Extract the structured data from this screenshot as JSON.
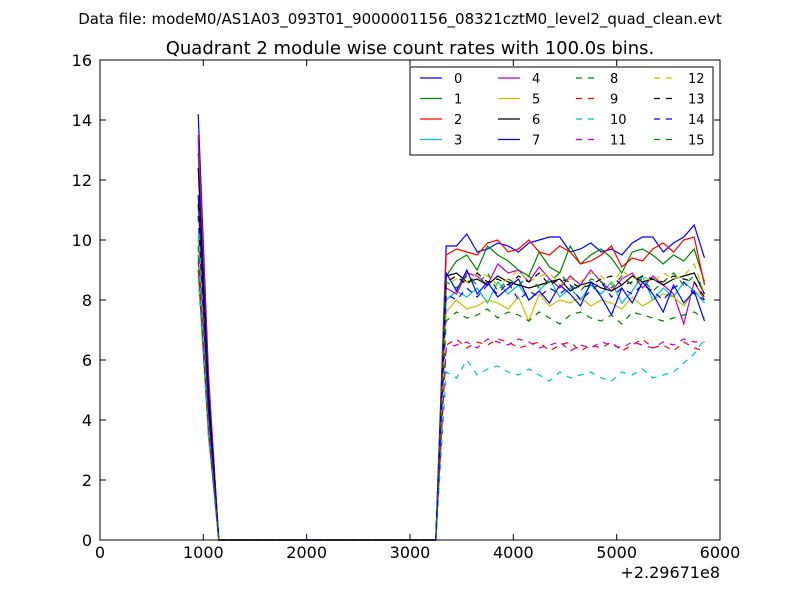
{
  "figure": {
    "suptitle": "Data file: modeM0/AS1A03_093T01_9000001156_08321cztM0_level2_quad_clean.evt",
    "title": "Quadrant 2 module wise count rates with 100.0s bins."
  },
  "chart_data": {
    "type": "line",
    "title": "Quadrant 2 module wise count rates with 100.0s bins.",
    "xlabel": "",
    "ylabel": "",
    "x_offset_label": "+2.29671e8",
    "xlim": [
      0,
      6000
    ],
    "ylim": [
      0,
      16
    ],
    "xticks": [
      0,
      1000,
      2000,
      3000,
      4000,
      5000,
      6000
    ],
    "yticks": [
      0,
      2,
      4,
      6,
      8,
      10,
      12,
      14,
      16
    ],
    "grid": false,
    "legend": {
      "placement": "top-right",
      "columns": 4
    },
    "x": [
      950,
      1050,
      1150,
      1250,
      1350,
      1450,
      1550,
      1650,
      1750,
      1850,
      1950,
      2050,
      2150,
      2250,
      2350,
      2450,
      2550,
      2650,
      2750,
      2850,
      2950,
      3050,
      3150,
      3250,
      3350,
      3450,
      3550,
      3650,
      3750,
      3850,
      3950,
      4050,
      4150,
      4250,
      4350,
      4450,
      4550,
      4650,
      4750,
      4850,
      4950,
      5050,
      5150,
      5250,
      5350,
      5450,
      5550,
      5650,
      5750,
      5850
    ],
    "series": [
      {
        "name": "0",
        "color": "#0000ff",
        "dash": "solid",
        "values": [
          14.2,
          5.5,
          0,
          0,
          0,
          0,
          0,
          0,
          0,
          0,
          0,
          0,
          0,
          0,
          0,
          0,
          0,
          0,
          0,
          0,
          0,
          0,
          0,
          0,
          9.8,
          9.8,
          10.2,
          9.6,
          9.7,
          9.9,
          9.8,
          9.6,
          9.9,
          10.0,
          10.1,
          10.1,
          9.6,
          9.7,
          9.9,
          9.6,
          9.7,
          9.5,
          9.9,
          10.1,
          10.1,
          9.6,
          9.9,
          10.1,
          10.5,
          9.4
        ]
      },
      {
        "name": "1",
        "color": "#008000",
        "dash": "solid",
        "values": [
          12.9,
          5.0,
          0,
          0,
          0,
          0,
          0,
          0,
          0,
          0,
          0,
          0,
          0,
          0,
          0,
          0,
          0,
          0,
          0,
          0,
          0,
          0,
          0,
          0,
          8.8,
          9.3,
          9.5,
          9.0,
          9.8,
          9.5,
          9.3,
          9.0,
          8.8,
          9.6,
          9.1,
          8.9,
          9.8,
          9.2,
          9.5,
          9.7,
          9.4,
          8.9,
          9.6,
          9.7,
          9.5,
          9.2,
          9.5,
          9.3,
          9.7,
          8.6
        ]
      },
      {
        "name": "2",
        "color": "#ff0000",
        "dash": "solid",
        "values": [
          13.5,
          5.3,
          0,
          0,
          0,
          0,
          0,
          0,
          0,
          0,
          0,
          0,
          0,
          0,
          0,
          0,
          0,
          0,
          0,
          0,
          0,
          0,
          0,
          0,
          9.5,
          9.7,
          9.6,
          9.5,
          9.9,
          10.0,
          9.6,
          9.7,
          10.0,
          9.6,
          9.5,
          9.8,
          9.6,
          9.2,
          9.3,
          9.5,
          9.8,
          9.1,
          9.4,
          9.3,
          9.7,
          9.9,
          9.6,
          10.0,
          10.1,
          8.5
        ]
      },
      {
        "name": "3",
        "color": "#00bfbf",
        "dash": "solid",
        "values": [
          10.2,
          4.0,
          0,
          0,
          0,
          0,
          0,
          0,
          0,
          0,
          0,
          0,
          0,
          0,
          0,
          0,
          0,
          0,
          0,
          0,
          0,
          0,
          0,
          0,
          8.0,
          8.3,
          8.1,
          8.4,
          7.9,
          8.6,
          8.2,
          8.5,
          8.0,
          8.3,
          8.7,
          8.1,
          8.4,
          8.0,
          8.5,
          8.2,
          8.6,
          7.9,
          8.3,
          8.8,
          8.0,
          8.4,
          8.1,
          8.6,
          8.3,
          7.9
        ]
      },
      {
        "name": "4",
        "color": "#bf00bf",
        "dash": "solid",
        "values": [
          13.3,
          5.2,
          0,
          0,
          0,
          0,
          0,
          0,
          0,
          0,
          0,
          0,
          0,
          0,
          0,
          0,
          0,
          0,
          0,
          0,
          0,
          0,
          0,
          0,
          8.4,
          8.2,
          8.9,
          8.8,
          8.5,
          9.2,
          8.9,
          9.0,
          8.6,
          9.1,
          8.7,
          8.4,
          8.8,
          8.5,
          9.0,
          8.6,
          8.3,
          8.7,
          8.9,
          8.4,
          8.8,
          8.5,
          8.2,
          7.2,
          8.6,
          8.0
        ]
      },
      {
        "name": "5",
        "color": "#bfbf00",
        "dash": "solid",
        "values": [
          11.0,
          4.3,
          0,
          0,
          0,
          0,
          0,
          0,
          0,
          0,
          0,
          0,
          0,
          0,
          0,
          0,
          0,
          0,
          0,
          0,
          0,
          0,
          0,
          0,
          7.6,
          8.0,
          7.7,
          7.8,
          8.0,
          7.9,
          7.7,
          8.1,
          7.3,
          8.2,
          7.8,
          8.0,
          7.9,
          8.1,
          7.8,
          8.0,
          7.9,
          7.7,
          8.1,
          7.8,
          8.0,
          8.2,
          8.1,
          7.8,
          8.3,
          8.1
        ]
      },
      {
        "name": "6",
        "color": "#000000",
        "dash": "solid",
        "values": [
          12.4,
          4.9,
          0,
          0,
          0,
          0,
          0,
          0,
          0,
          0,
          0,
          0,
          0,
          0,
          0,
          0,
          0,
          0,
          0,
          0,
          0,
          0,
          0,
          0,
          8.8,
          8.9,
          8.6,
          8.7,
          8.5,
          8.8,
          8.6,
          8.5,
          8.4,
          8.5,
          8.6,
          8.7,
          8.3,
          8.5,
          8.6,
          8.4,
          8.3,
          8.5,
          8.8,
          8.6,
          8.7,
          8.5,
          8.7,
          8.8,
          8.9,
          8.2
        ]
      },
      {
        "name": "7",
        "color": "#0000ff",
        "dash": "solid",
        "values": [
          11.5,
          4.4,
          0,
          0,
          0,
          0,
          0,
          0,
          0,
          0,
          0,
          0,
          0,
          0,
          0,
          0,
          0,
          0,
          0,
          0,
          0,
          0,
          0,
          0,
          8.9,
          8.3,
          9.0,
          8.2,
          8.6,
          8.1,
          8.4,
          8.7,
          8.0,
          8.3,
          7.9,
          8.5,
          8.2,
          7.8,
          8.6,
          8.1,
          7.5,
          8.4,
          7.9,
          8.6,
          8.2,
          7.6,
          8.5,
          7.9,
          8.3,
          7.3
        ]
      },
      {
        "name": "8",
        "color": "#008000",
        "dash": "dashed",
        "values": [
          9.5,
          3.8,
          0,
          0,
          0,
          0,
          0,
          0,
          0,
          0,
          0,
          0,
          0,
          0,
          0,
          0,
          0,
          0,
          0,
          0,
          0,
          0,
          0,
          0,
          7.3,
          7.6,
          7.4,
          7.5,
          7.7,
          7.4,
          7.6,
          7.5,
          7.3,
          7.6,
          7.4,
          7.2,
          7.5,
          7.6,
          7.4,
          7.3,
          7.5,
          7.2,
          7.6,
          7.5,
          7.4,
          7.3,
          7.4,
          7.5,
          7.6,
          7.4
        ]
      },
      {
        "name": "9",
        "color": "#ff0000",
        "dash": "dashed",
        "values": [
          9.0,
          3.5,
          0,
          0,
          0,
          0,
          0,
          0,
          0,
          0,
          0,
          0,
          0,
          0,
          0,
          0,
          0,
          0,
          0,
          0,
          0,
          0,
          0,
          0,
          6.5,
          6.7,
          6.4,
          6.6,
          6.5,
          6.7,
          6.6,
          6.4,
          6.5,
          6.6,
          6.3,
          6.5,
          6.6,
          6.3,
          6.5,
          6.4,
          6.6,
          6.3,
          6.5,
          6.7,
          6.4,
          6.5,
          6.3,
          6.6,
          6.4,
          6.3
        ]
      },
      {
        "name": "10",
        "color": "#00bfbf",
        "dash": "dashed",
        "values": [
          8.8,
          3.4,
          0,
          0,
          0,
          0,
          0,
          0,
          0,
          0,
          0,
          0,
          0,
          0,
          0,
          0,
          0,
          0,
          0,
          0,
          0,
          0,
          0,
          0,
          5.6,
          5.4,
          6.0,
          5.5,
          5.7,
          5.8,
          5.6,
          5.5,
          5.7,
          5.5,
          5.3,
          5.6,
          5.4,
          5.5,
          5.6,
          5.4,
          5.3,
          5.6,
          5.5,
          5.7,
          5.4,
          5.5,
          5.6,
          5.9,
          6.2,
          6.7
        ]
      },
      {
        "name": "11",
        "color": "#bf00bf",
        "dash": "dashed",
        "values": [
          9.3,
          3.6,
          0,
          0,
          0,
          0,
          0,
          0,
          0,
          0,
          0,
          0,
          0,
          0,
          0,
          0,
          0,
          0,
          0,
          0,
          0,
          0,
          0,
          0,
          6.4,
          6.5,
          6.6,
          6.4,
          6.7,
          6.6,
          6.5,
          6.7,
          6.6,
          6.4,
          6.5,
          6.6,
          6.3,
          6.5,
          6.4,
          6.6,
          6.5,
          6.4,
          6.6,
          6.5,
          6.4,
          6.6,
          6.5,
          6.7,
          6.6,
          6.6
        ]
      },
      {
        "name": "12",
        "color": "#bfbf00",
        "dash": "dashed",
        "values": [
          10.0,
          3.9,
          0,
          0,
          0,
          0,
          0,
          0,
          0,
          0,
          0,
          0,
          0,
          0,
          0,
          0,
          0,
          0,
          0,
          0,
          0,
          0,
          0,
          0,
          8.5,
          8.7,
          8.6,
          8.9,
          8.8,
          8.5,
          8.7,
          9.0,
          8.6,
          8.8,
          8.9,
          8.5,
          8.7,
          8.6,
          8.9,
          8.8,
          8.5,
          9.0,
          8.7,
          8.8,
          8.6,
          8.9,
          8.7,
          8.8,
          9.2,
          8.2
        ]
      },
      {
        "name": "13",
        "color": "#000000",
        "dash": "dashed",
        "values": [
          11.2,
          4.4,
          0,
          0,
          0,
          0,
          0,
          0,
          0,
          0,
          0,
          0,
          0,
          0,
          0,
          0,
          0,
          0,
          0,
          0,
          0,
          0,
          0,
          0,
          8.6,
          8.8,
          8.5,
          8.9,
          8.6,
          8.7,
          8.5,
          8.8,
          8.6,
          8.9,
          8.5,
          8.7,
          8.6,
          8.4,
          8.5,
          8.7,
          8.8,
          8.5,
          8.6,
          8.8,
          8.7,
          8.6,
          8.8,
          8.7,
          8.6,
          8.1
        ]
      },
      {
        "name": "14",
        "color": "#0000ff",
        "dash": "dashed",
        "values": [
          10.8,
          4.2,
          0,
          0,
          0,
          0,
          0,
          0,
          0,
          0,
          0,
          0,
          0,
          0,
          0,
          0,
          0,
          0,
          0,
          0,
          0,
          0,
          0,
          0,
          8.2,
          8.0,
          8.4,
          8.1,
          8.5,
          8.2,
          8.6,
          8.0,
          8.3,
          8.1,
          8.4,
          8.2,
          8.5,
          8.0,
          8.3,
          8.6,
          8.1,
          8.4,
          8.2,
          8.5,
          8.3,
          8.0,
          8.4,
          8.6,
          8.2,
          8.0
        ]
      },
      {
        "name": "15",
        "color": "#008000",
        "dash": "dashed",
        "values": [
          9.8,
          3.8,
          0,
          0,
          0,
          0,
          0,
          0,
          0,
          0,
          0,
          0,
          0,
          0,
          0,
          0,
          0,
          0,
          0,
          0,
          0,
          0,
          0,
          0,
          8.6,
          8.4,
          8.8,
          8.5,
          8.9,
          8.3,
          8.7,
          8.5,
          8.8,
          8.4,
          8.6,
          8.9,
          8.5,
          8.3,
          8.7,
          8.6,
          8.4,
          8.8,
          8.5,
          8.7,
          8.3,
          8.6,
          8.9,
          8.5,
          8.8,
          8.4
        ]
      }
    ]
  }
}
